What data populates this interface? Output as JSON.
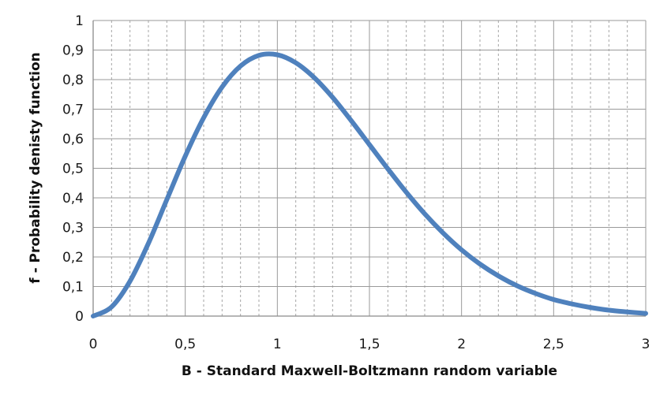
{
  "chart_data": {
    "type": "line",
    "title": "",
    "xlabel": "B - Standard Maxwell-Boltzmann random variable",
    "ylabel": "f - Probability denisty function",
    "xlim": [
      0,
      3
    ],
    "ylim": [
      0,
      1
    ],
    "x_ticks": [
      "0",
      "0,5",
      "1",
      "1,5",
      "2",
      "2,5",
      "3"
    ],
    "y_ticks": [
      "0",
      "0,1",
      "0,2",
      "0,3",
      "0,4",
      "0,5",
      "0,6",
      "0,7",
      "0,8",
      "0,9",
      "1"
    ],
    "grid": true,
    "legend": "none",
    "series": [
      {
        "color": "#4f81bd",
        "x": [
          0,
          0.1,
          0.2,
          0.3,
          0.4,
          0.5,
          0.6,
          0.7,
          0.8,
          0.9,
          1.0,
          1.1,
          1.2,
          1.3,
          1.4,
          1.5,
          1.6,
          1.7,
          1.8,
          1.9,
          2.0,
          2.1,
          2.2,
          2.3,
          2.4,
          2.5,
          2.6,
          2.7,
          2.8,
          2.9,
          3.0
        ],
        "y": [
          0,
          0.031,
          0.118,
          0.246,
          0.394,
          0.541,
          0.671,
          0.775,
          0.846,
          0.882,
          0.884,
          0.857,
          0.807,
          0.74,
          0.662,
          0.58,
          0.498,
          0.419,
          0.346,
          0.281,
          0.224,
          0.176,
          0.136,
          0.103,
          0.077,
          0.056,
          0.041,
          0.029,
          0.02,
          0.014,
          0.009
        ]
      }
    ]
  },
  "colors": {
    "line": "#4f81bd",
    "grid": "#a6a6a6",
    "axis": "#8a8a8a"
  }
}
